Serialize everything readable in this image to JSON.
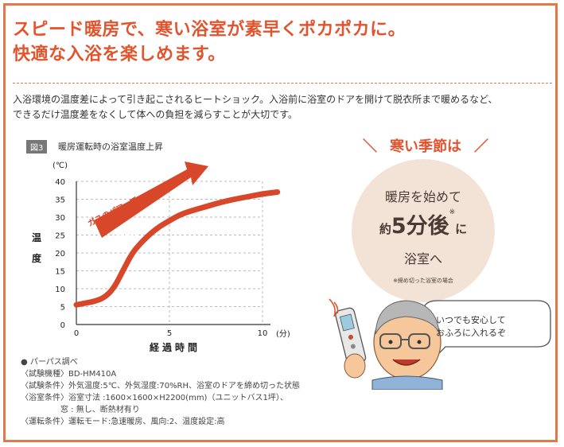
{
  "headline": {
    "line1": "スピード暖房で、寒い浴室が素早くポカポカに。",
    "line2": "快適な入浴を楽しめます。"
  },
  "intro": {
    "line1": "入浴環境の温度差によって引き起こされるヒートショック。入浴前に浴室のドアを開けて脱衣所まで暖めるなど、",
    "line2": "できるだけ温度差をなくして体への負担を減らすことが大切です。"
  },
  "figure": {
    "badge": "図3",
    "title": "暖房運転時の浴室温度上昇",
    "arrow_line1": "ガスのパワーで",
    "arrow_line2": "急速暖房!"
  },
  "chart_data": {
    "type": "line",
    "title": "暖房運転時の浴室温度上昇",
    "xlabel": "経過時間",
    "ylabel": "温度",
    "x_unit": "(分)",
    "y_unit": "(℃)",
    "xlim": [
      0,
      11
    ],
    "ylim": [
      0,
      40
    ],
    "xticks": [
      "0",
      "5",
      "10"
    ],
    "yticks": [
      "0",
      "5",
      "10",
      "15",
      "20",
      "25",
      "30",
      "35",
      "40"
    ],
    "grid": "dashed",
    "series": [
      {
        "color": "#d9472b",
        "x": [
          0,
          0.5,
          1,
          1.5,
          2,
          2.5,
          3,
          3.5,
          4,
          4.5,
          5,
          5.5,
          6,
          7,
          8,
          9,
          10,
          10.8
        ],
        "y": [
          5.5,
          6,
          6.5,
          7.5,
          10,
          15,
          20,
          23,
          25.5,
          27.5,
          29,
          30.5,
          31.5,
          33,
          34.5,
          35.5,
          36.5,
          37
        ]
      }
    ]
  },
  "notes": [
    "● パーパス調べ",
    "〈試験機種〉BD-HM410A",
    "〈試験条件〉外気温度:5℃、外気湿度:70%RH、浴室のドアを締め切った状態",
    "〈浴室条件〉浴室寸法 :1600×1600×H2200(mm)（ユニットバス1坪）、",
    "　　　　　窓 : 無し、断熱材有り",
    "〈運転条件〉運転モード:急速暖房、風向:2、温度設定:高"
  ],
  "season": {
    "title": "寒い季節は",
    "line1": "暖房を始めて",
    "prefix": "約",
    "number": "5分後",
    "mark": "※",
    "suffix": "に",
    "line3": "浴室へ",
    "footnote": "※締め切った浴室の場合"
  },
  "speech": {
    "line1": "いつでも安心して",
    "line2": "おふろに入れるぞ"
  },
  "colors": {
    "accent": "#e2542e",
    "border": "#e07a4a",
    "curve": "#d9472b",
    "circle": "#f3e3d6"
  }
}
